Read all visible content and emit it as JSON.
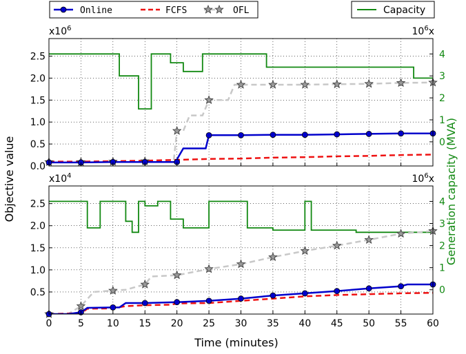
{
  "legend": {
    "online": "Online",
    "fcfs": "FCFS",
    "ofl": "OFL",
    "capacity": "Capacity"
  },
  "y_label_left": "Objective value",
  "y_label_right": "Generation capacity (MVA)",
  "x_label": "Time (minutes)",
  "colors": {
    "online": "#0000cc",
    "fcfs": "#ee1111",
    "ofl": "#c8c8c8",
    "capacity": "#118811"
  },
  "chart_data": [
    {
      "type": "line",
      "panel": "top",
      "scale_left": "x10^6",
      "scale_right": "10^6x",
      "xlim": [
        0,
        60
      ],
      "ylim": [
        0,
        2.9
      ],
      "yticks": [
        "0.0",
        "0.5",
        "1.0",
        "1.5",
        "2.0",
        "2.5"
      ],
      "yticks_right": [
        "0",
        "1",
        "2",
        "3",
        "4"
      ],
      "ylim_right": [
        -1.1,
        4.7
      ],
      "series": [
        {
          "name": "Online",
          "x": [
            0,
            5,
            10,
            15,
            19.8,
            20,
            21,
            24.5,
            25,
            30,
            35,
            40,
            45,
            50,
            55,
            60
          ],
          "y": [
            0.08,
            0.08,
            0.09,
            0.09,
            0.09,
            0.15,
            0.4,
            0.4,
            0.7,
            0.7,
            0.71,
            0.71,
            0.72,
            0.73,
            0.74,
            0.74
          ],
          "markers_x": [
            0,
            5,
            10,
            15,
            20,
            25,
            30,
            35,
            40,
            45,
            50,
            55,
            60
          ],
          "markers_y": [
            0.08,
            0.08,
            0.09,
            0.09,
            0.09,
            0.7,
            0.7,
            0.71,
            0.71,
            0.72,
            0.73,
            0.74,
            0.74
          ]
        },
        {
          "name": "FCFS",
          "x": [
            0,
            5,
            10,
            15,
            20,
            25,
            30,
            35,
            40,
            45,
            50,
            55,
            60
          ],
          "y": [
            0.1,
            0.1,
            0.11,
            0.12,
            0.14,
            0.16,
            0.17,
            0.19,
            0.2,
            0.22,
            0.23,
            0.25,
            0.26
          ]
        },
        {
          "name": "OFL",
          "x": [
            0,
            5,
            10,
            15,
            19.5,
            20,
            21,
            22,
            24,
            25,
            27,
            28,
            29,
            30,
            35,
            40,
            45,
            50,
            55,
            60
          ],
          "y": [
            0.09,
            0.09,
            0.1,
            0.11,
            0.12,
            0.8,
            0.8,
            1.15,
            1.15,
            1.5,
            1.5,
            1.5,
            1.85,
            1.85,
            1.85,
            1.85,
            1.86,
            1.87,
            1.89,
            1.9
          ],
          "markers_x": [
            0,
            5,
            10,
            15,
            20,
            25,
            30,
            35,
            40,
            45,
            50,
            55,
            60
          ],
          "markers_y": [
            0.09,
            0.09,
            0.1,
            0.11,
            0.8,
            1.5,
            1.85,
            1.85,
            1.85,
            1.86,
            1.87,
            1.89,
            1.9
          ]
        },
        {
          "name": "Capacity",
          "axis": "right",
          "step_x": [
            0,
            11,
            11,
            14,
            14,
            16,
            16,
            19,
            19,
            21,
            21,
            24,
            24,
            34,
            34,
            57,
            57,
            60
          ],
          "step_y": [
            4.0,
            4.0,
            3.0,
            3.0,
            1.5,
            1.5,
            4.0,
            4.0,
            3.6,
            3.6,
            3.2,
            3.2,
            4.0,
            4.0,
            3.4,
            3.4,
            2.9,
            2.9
          ]
        }
      ]
    },
    {
      "type": "line",
      "panel": "bottom",
      "scale_left": "x10^4",
      "scale_right": "10^6x",
      "xlim": [
        0,
        60
      ],
      "ylim": [
        0,
        2.9
      ],
      "xticks": [
        "0",
        "5",
        "10",
        "15",
        "20",
        "25",
        "30",
        "35",
        "40",
        "45",
        "50",
        "55",
        "60"
      ],
      "yticks": [
        "0.5",
        "1.0",
        "1.5",
        "2.0",
        "2.5"
      ],
      "yticks_right": [
        "0",
        "1",
        "2",
        "3",
        "4"
      ],
      "ylim_right": [
        -1.1,
        4.7
      ],
      "series": [
        {
          "name": "Online",
          "x": [
            0,
            3,
            5,
            6,
            10,
            11,
            12,
            15,
            20,
            25,
            30,
            35,
            40,
            45,
            50,
            55,
            56,
            60
          ],
          "y": [
            0,
            0,
            0.04,
            0.14,
            0.15,
            0.15,
            0.25,
            0.25,
            0.27,
            0.3,
            0.35,
            0.42,
            0.47,
            0.52,
            0.58,
            0.63,
            0.67,
            0.67
          ],
          "markers_x": [
            0,
            5,
            10,
            15,
            20,
            25,
            30,
            35,
            40,
            45,
            50,
            55,
            60
          ],
          "markers_y": [
            0,
            0.04,
            0.15,
            0.25,
            0.27,
            0.3,
            0.35,
            0.42,
            0.47,
            0.52,
            0.58,
            0.63,
            0.67
          ]
        },
        {
          "name": "FCFS",
          "x": [
            0,
            5,
            6,
            10,
            12,
            15,
            19,
            20,
            25,
            30,
            35,
            40,
            45,
            50,
            55,
            60
          ],
          "y": [
            0,
            0.02,
            0.12,
            0.13,
            0.18,
            0.2,
            0.21,
            0.24,
            0.25,
            0.3,
            0.35,
            0.4,
            0.43,
            0.45,
            0.47,
            0.48
          ],
          "markers_x": [],
          "markers_y": []
        },
        {
          "name": "OFL",
          "x": [
            0,
            3,
            5,
            7,
            10,
            12,
            15,
            16,
            20,
            25,
            30,
            35,
            40,
            45,
            50,
            55,
            60
          ],
          "y": [
            0,
            0,
            0.18,
            0.5,
            0.53,
            0.55,
            0.67,
            0.85,
            0.88,
            1.02,
            1.13,
            1.29,
            1.43,
            1.55,
            1.68,
            1.82,
            1.88
          ],
          "markers_x": [
            0,
            5,
            10,
            15,
            20,
            25,
            30,
            35,
            40,
            45,
            50,
            55,
            60
          ],
          "markers_y": [
            0,
            0.18,
            0.53,
            0.67,
            0.88,
            1.02,
            1.13,
            1.29,
            1.43,
            1.55,
            1.68,
            1.82,
            1.88
          ]
        },
        {
          "name": "Capacity",
          "axis": "right",
          "step_x": [
            0,
            6,
            6,
            8,
            8,
            12,
            12,
            13,
            13,
            14,
            14,
            15,
            15,
            17,
            17,
            19,
            19,
            21,
            21,
            25,
            25,
            31,
            31,
            35,
            35,
            40,
            40,
            41,
            41,
            48,
            48,
            60
          ],
          "step_y": [
            4.0,
            4.0,
            2.8,
            2.8,
            4.0,
            4.0,
            3.1,
            3.1,
            2.6,
            2.6,
            4.0,
            4.0,
            3.8,
            3.8,
            4.0,
            4.0,
            3.2,
            3.2,
            2.8,
            2.8,
            4.0,
            4.0,
            2.8,
            2.8,
            2.7,
            2.7,
            4.0,
            4.0,
            2.7,
            2.7,
            2.6,
            2.6
          ]
        }
      ]
    }
  ]
}
